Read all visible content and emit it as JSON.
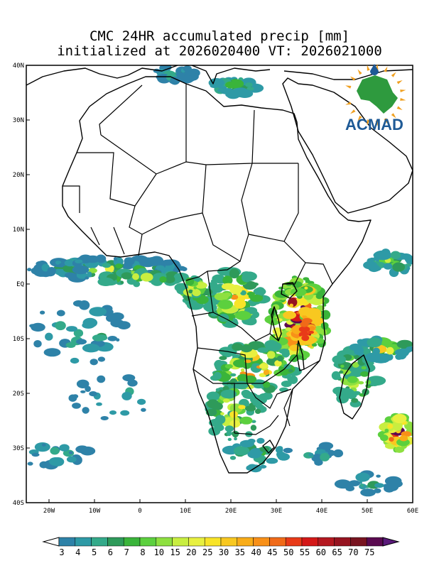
{
  "title_line1": "CMC 24HR accumulated precip [mm]",
  "title_line2": "initialized at 2026020400 VT: 2026021000",
  "logo": {
    "text": "ACMAD",
    "brand_color": "#1e5a96",
    "accent_color": "#f0a020",
    "continent_color": "#2e9a3e",
    "drop_color": "#1e5a96"
  },
  "map": {
    "extent": {
      "lon_min": -25,
      "lon_max": 60,
      "lat_min": -40,
      "lat_max": 40
    },
    "lat_ticks": [
      {
        "lat": 40,
        "label": "40N"
      },
      {
        "lat": 30,
        "label": "30N"
      },
      {
        "lat": 20,
        "label": "20N"
      },
      {
        "lat": 10,
        "label": "10N"
      },
      {
        "lat": 0,
        "label": "EQ"
      },
      {
        "lat": -10,
        "label": "10S"
      },
      {
        "lat": -20,
        "label": "20S"
      },
      {
        "lat": -30,
        "label": "30S"
      },
      {
        "lat": -40,
        "label": "40S"
      }
    ],
    "lon_ticks": [
      {
        "lon": -20,
        "label": "20W"
      },
      {
        "lon": -10,
        "label": "10W"
      },
      {
        "lon": 0,
        "label": "0"
      },
      {
        "lon": 10,
        "label": "10E"
      },
      {
        "lon": 20,
        "label": "20E"
      },
      {
        "lon": 30,
        "label": "30E"
      },
      {
        "lon": 40,
        "label": "40E"
      },
      {
        "lon": 50,
        "label": "50E"
      },
      {
        "lon": 60,
        "label": "60E"
      }
    ]
  },
  "colorbar": {
    "labels": [
      "3",
      "4",
      "5",
      "6",
      "7",
      "8",
      "10",
      "15",
      "20",
      "25",
      "30",
      "35",
      "40",
      "45",
      "50",
      "55",
      "60",
      "65",
      "70",
      "75"
    ],
    "colors": [
      "#2e82a8",
      "#2e9aa6",
      "#34aa8a",
      "#2e9a5a",
      "#3ab43a",
      "#5cd03e",
      "#8ee040",
      "#c8ee40",
      "#e8f040",
      "#f8e428",
      "#f8c820",
      "#f8ac18",
      "#f89018",
      "#f06a18",
      "#e83a18",
      "#d41818",
      "#b41820",
      "#961420",
      "#781420",
      "#5a0a50"
    ],
    "under_color": "#ffffff",
    "over_color": "#5a1a7a"
  }
}
